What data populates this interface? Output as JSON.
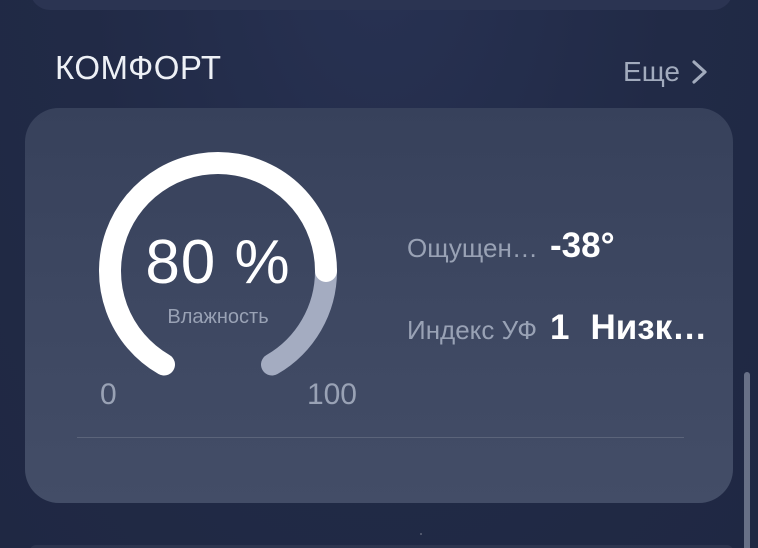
{
  "section": {
    "title": "КОМФОРТ",
    "more_label": "Еще",
    "more_icon": "chevron-right-icon"
  },
  "card": {
    "gauge": {
      "type": "gauge",
      "value": 80,
      "value_label": "80 %",
      "caption": "Влажность",
      "min": 0,
      "max": 100,
      "min_label": "0",
      "max_label": "100",
      "sweep_degrees": 300,
      "start_degree_clock": 210,
      "filled_color": "#ffffff",
      "track_color": "#a4acc1"
    },
    "metrics": [
      {
        "label": "Ощущен…",
        "value": "-38°"
      },
      {
        "label": "Индекс УФ",
        "value": "1",
        "value2": "Низк…"
      }
    ]
  },
  "colors": {
    "page_background": "#212a46",
    "card_background": "#3d4761",
    "primary_text": "#ffffff",
    "muted_text": "#99a2b5",
    "gauge_track": "#a4acc1"
  }
}
